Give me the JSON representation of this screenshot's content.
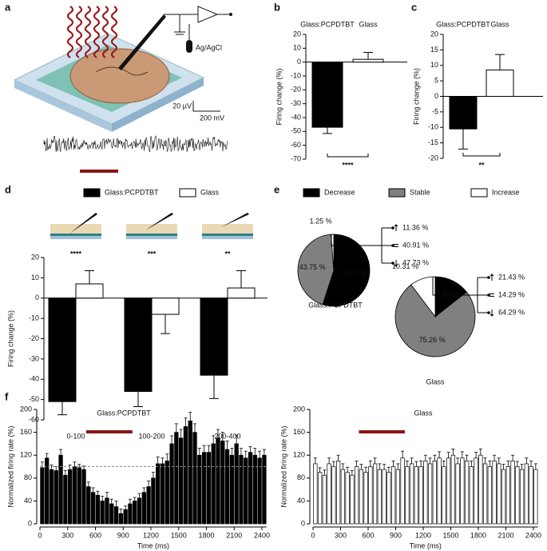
{
  "panel_labels": [
    "a",
    "b",
    "c",
    "d",
    "e",
    "f"
  ],
  "schematic": {
    "electrode": "Ag/AgCl",
    "scale_y": "20 µV",
    "scale_x": "200 mV"
  },
  "chart_data": [
    {
      "type": "bar",
      "categories": [
        "Glass:PCPDTBT",
        "Glass"
      ],
      "values": [
        -47,
        2
      ],
      "errors": [
        4.5,
        5
      ],
      "colors": [
        "#000000",
        "#ffffff"
      ],
      "ylabel": "Firing change (%)",
      "ylim": [
        -70,
        20
      ],
      "yticks": [
        -70,
        -60,
        -50,
        -40,
        -30,
        -20,
        -10,
        0,
        10,
        20
      ],
      "significance": "****"
    },
    {
      "type": "bar",
      "categories": [
        "Glass:PCPDTBT",
        "Glass"
      ],
      "values": [
        -10.5,
        8.5
      ],
      "errors": [
        6.5,
        5
      ],
      "colors": [
        "#000000",
        "#ffffff"
      ],
      "ylabel": "Firing change (%)",
      "ylim": [
        -20,
        20
      ],
      "yticks": [
        -20,
        -15,
        -10,
        -5,
        0,
        5,
        10,
        15,
        20
      ],
      "significance": "**"
    },
    {
      "type": "bar",
      "categories": [
        "0-100",
        "100-200",
        "200-400"
      ],
      "series": [
        {
          "name": "Glass:PCPDTBT",
          "color": "#000000",
          "values": [
            -51,
            -46,
            -38
          ],
          "errors": [
            6.5,
            7.5,
            11.5
          ]
        },
        {
          "name": "Glass",
          "color": "#ffffff",
          "values": [
            7,
            -8,
            5
          ],
          "errors": [
            6.5,
            9.5,
            8.5
          ]
        }
      ],
      "ylabel": "Firing change (%)",
      "ylim": [
        -60,
        20
      ],
      "yticks": [
        -60,
        -50,
        -40,
        -30,
        -20,
        -10,
        0,
        10,
        20
      ],
      "significance": [
        "****",
        "***",
        "**"
      ]
    },
    {
      "type": "pie",
      "title": "Glass:PCPDTBT",
      "categories": [
        "Decrease",
        "Stable",
        "Increase"
      ],
      "colors": [
        "#000000",
        "#808080",
        "#ffffff"
      ],
      "values": [
        55.0,
        43.75,
        1.25
      ],
      "value_labels": [
        "55.0 %",
        "43.75 %",
        "1.25 %"
      ],
      "annotations": [
        "11.36 %",
        "40.91 %",
        "47.73 %"
      ]
    },
    {
      "type": "pie",
      "title": "Glass",
      "colors": [
        "#000000",
        "#808080",
        "#ffffff"
      ],
      "values": [
        14.43,
        75.26,
        10.31
      ],
      "value_labels": [
        "14.43 %",
        "75.26 %",
        "10.31 %"
      ],
      "annotations": [
        "21.43 %",
        "14.29 %",
        "64.29 %"
      ]
    },
    {
      "type": "histogram",
      "title": "Glass:PCPDTBT",
      "color": "#000000",
      "xlabel": "Time (ms)",
      "ylabel": "Normalized firing rate (%)",
      "bins": [
        0,
        50,
        100,
        150,
        200,
        250,
        300,
        350,
        400,
        450,
        500,
        550,
        600,
        650,
        700,
        750,
        800,
        850,
        900,
        950,
        1000,
        1050,
        1100,
        1150,
        1200,
        1250,
        1300,
        1350,
        1400,
        1450,
        1500,
        1550,
        1600,
        1650,
        1700,
        1750,
        1800,
        1850,
        1900,
        1950,
        2000,
        2050,
        2100,
        2150,
        2200,
        2250,
        2300,
        2350,
        2400,
        2450
      ],
      "values": [
        98,
        115,
        95,
        93,
        120,
        85,
        95,
        100,
        98,
        95,
        65,
        55,
        50,
        40,
        45,
        35,
        30,
        18,
        25,
        35,
        40,
        45,
        55,
        65,
        80,
        105,
        105,
        110,
        140,
        160,
        150,
        170,
        180,
        160,
        120,
        125,
        125,
        140,
        150,
        145,
        130,
        120,
        140,
        120,
        115,
        125,
        120,
        115,
        120
      ],
      "errors": [
        10,
        8,
        8,
        7,
        10,
        8,
        8,
        8,
        6,
        6,
        8,
        8,
        7,
        8,
        10,
        8,
        10,
        8,
        6,
        8,
        6,
        8,
        8,
        10,
        10,
        12,
        10,
        12,
        14,
        15,
        15,
        15,
        15,
        15,
        12,
        12,
        12,
        14,
        15,
        15,
        15,
        12,
        15,
        12,
        12,
        10,
        12,
        12,
        10
      ],
      "xlim": [
        0,
        2450
      ],
      "xticks": [
        0,
        300,
        600,
        900,
        1200,
        1500,
        1800,
        2100,
        2400
      ],
      "ylim": [
        0,
        200
      ],
      "yticks": [
        0,
        40,
        80,
        120,
        160,
        200
      ],
      "ref_line": 100,
      "stimulus": [
        500,
        1000
      ]
    },
    {
      "type": "histogram",
      "title": "Glass",
      "color": "#ffffff",
      "xlabel": "Time (ms)",
      "ylabel": "Normalized firing rate (%)",
      "bins": [
        0,
        50,
        100,
        150,
        200,
        250,
        300,
        350,
        400,
        450,
        500,
        550,
        600,
        650,
        700,
        750,
        800,
        850,
        900,
        950,
        1000,
        1050,
        1100,
        1150,
        1200,
        1250,
        1300,
        1350,
        1400,
        1450,
        1500,
        1550,
        1600,
        1650,
        1700,
        1750,
        1800,
        1850,
        1900,
        1950,
        2000,
        2050,
        2100,
        2150,
        2200,
        2250,
        2300,
        2350,
        2400,
        2450
      ],
      "values": [
        105,
        90,
        85,
        105,
        100,
        110,
        95,
        90,
        85,
        100,
        95,
        90,
        100,
        105,
        95,
        95,
        90,
        100,
        95,
        115,
        100,
        105,
        100,
        100,
        110,
        105,
        110,
        115,
        100,
        115,
        120,
        105,
        115,
        110,
        100,
        115,
        120,
        105,
        100,
        110,
        105,
        95,
        100,
        110,
        100,
        95,
        105,
        100,
        95
      ],
      "errors": [
        10,
        8,
        9,
        10,
        9,
        10,
        10,
        9,
        8,
        10,
        9,
        9,
        10,
        10,
        10,
        9,
        9,
        10,
        10,
        12,
        10,
        10,
        9,
        10,
        10,
        10,
        10,
        11,
        10,
        10,
        11,
        10,
        11,
        10,
        10,
        10,
        11,
        10,
        10,
        10,
        10,
        9,
        10,
        10,
        9,
        9,
        10,
        10,
        10
      ],
      "xlim": [
        0,
        2450
      ],
      "xticks": [
        0,
        300,
        600,
        900,
        1200,
        1500,
        1800,
        2100,
        2400
      ],
      "ylim": [
        0,
        200
      ],
      "yticks": [
        0,
        40,
        80,
        120,
        160,
        200
      ],
      "stimulus": [
        500,
        1000
      ]
    }
  ]
}
